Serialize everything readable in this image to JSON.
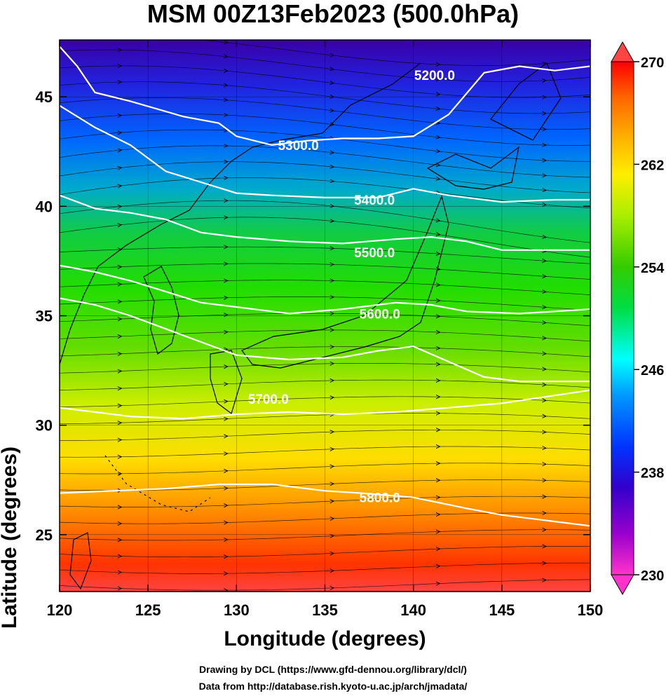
{
  "title": "MSM 00Z13Feb2023 (500.0hPa)",
  "xlabel": "Longitude (degrees)",
  "ylabel": "Latitude  (degrees)",
  "credits": {
    "line1": "Drawing by DCL (https://www.gfd-dennou.org/library/dcl/)",
    "line2": "Data from http://database.rish.kyoto-u.ac.jp/arch/jmadata/"
  },
  "chart_data": {
    "type": "heatmap",
    "x_range": [
      120,
      150
    ],
    "y_range": [
      22.4,
      47.6
    ],
    "x_ticks": [
      "120",
      "125",
      "130",
      "135",
      "140",
      "145",
      "150"
    ],
    "y_ticks": [
      "25",
      "30",
      "35",
      "40",
      "45"
    ],
    "colorbar": {
      "range": [
        230,
        270
      ],
      "ticks": [
        "230",
        "238",
        "246",
        "254",
        "262",
        "270"
      ],
      "colors": [
        "#ff33cc",
        "#9900cc",
        "#3300cc",
        "#0033ff",
        "#0099ff",
        "#00ffff",
        "#00dd44",
        "#33cc00",
        "#aaee00",
        "#ffee00",
        "#ffaa00",
        "#ff6600",
        "#ff0000"
      ]
    },
    "field_colors": {
      "north": "#4400aa",
      "mid_north": "#0055ff",
      "middle": "#22dd00",
      "mid_south": "#ddee00",
      "south": "#ff3300"
    },
    "contours": [
      {
        "label": "5200.0",
        "points": [
          [
            120,
            47.3
          ],
          [
            121,
            46.4
          ],
          [
            122,
            45.2
          ],
          [
            124,
            44.8
          ],
          [
            127,
            44.1
          ],
          [
            129,
            43.8
          ],
          [
            130,
            43.2
          ],
          [
            132,
            42.8
          ],
          [
            134,
            43.0
          ],
          [
            136,
            43.1
          ],
          [
            138,
            43.1
          ],
          [
            140,
            43.2
          ],
          [
            142,
            44.2
          ],
          [
            144,
            46.1
          ],
          [
            146,
            46.4
          ],
          [
            148,
            46.2
          ],
          [
            150,
            46.4
          ]
        ]
      },
      {
        "label": "5300.0",
        "points": [
          [
            120,
            44.6
          ],
          [
            122,
            43.6
          ],
          [
            124,
            42.8
          ],
          [
            126,
            41.6
          ],
          [
            128,
            41.1
          ],
          [
            130,
            40.6
          ],
          [
            132,
            40.5
          ],
          [
            135,
            40.4
          ],
          [
            138,
            40.4
          ],
          [
            140,
            40.8
          ],
          [
            142,
            40.5
          ],
          [
            145,
            40.2
          ],
          [
            148,
            40.3
          ],
          [
            150,
            40.3
          ]
        ]
      },
      {
        "label": "5400.0",
        "points": [
          [
            120,
            40.5
          ],
          [
            122,
            39.9
          ],
          [
            124,
            39.7
          ],
          [
            126,
            39.4
          ],
          [
            128,
            38.8
          ],
          [
            130,
            38.6
          ],
          [
            133,
            38.4
          ],
          [
            136,
            38.3
          ],
          [
            139,
            38.5
          ],
          [
            141,
            38.6
          ],
          [
            143,
            38.4
          ],
          [
            145,
            38.0
          ],
          [
            148,
            38.0
          ],
          [
            150,
            38.0
          ]
        ]
      },
      {
        "label": "5500.0",
        "points": [
          [
            120,
            37.3
          ],
          [
            122,
            37.0
          ],
          [
            124,
            36.6
          ],
          [
            126,
            36.1
          ],
          [
            128,
            35.6
          ],
          [
            130,
            35.4
          ],
          [
            133,
            35.1
          ],
          [
            136,
            35.3
          ],
          [
            139,
            35.6
          ],
          [
            141,
            35.5
          ],
          [
            143,
            35.2
          ],
          [
            146,
            35.1
          ],
          [
            150,
            35.3
          ]
        ]
      },
      {
        "label": "5600.0",
        "points": [
          [
            120,
            35.8
          ],
          [
            122,
            35.5
          ],
          [
            124,
            35.0
          ],
          [
            126,
            34.4
          ],
          [
            128,
            33.8
          ],
          [
            130,
            33.2
          ],
          [
            133,
            33.0
          ],
          [
            136,
            33.1
          ],
          [
            138,
            33.4
          ],
          [
            140,
            33.6
          ],
          [
            142,
            32.9
          ],
          [
            144,
            32.2
          ],
          [
            146,
            32.0
          ],
          [
            148,
            32.0
          ],
          [
            150,
            32.0
          ]
        ]
      },
      {
        "label": "5700.0",
        "points": [
          [
            120,
            30.8
          ],
          [
            122,
            30.6
          ],
          [
            124,
            30.4
          ],
          [
            127,
            30.3
          ],
          [
            130,
            30.5
          ],
          [
            133,
            30.6
          ],
          [
            136,
            30.5
          ],
          [
            139,
            30.6
          ],
          [
            142,
            30.8
          ],
          [
            145,
            31.0
          ],
          [
            150,
            31.6
          ]
        ]
      },
      {
        "label": "5800.0",
        "points": [
          [
            120,
            26.9
          ],
          [
            123,
            27.0
          ],
          [
            126,
            27.1
          ],
          [
            129,
            27.3
          ],
          [
            132,
            27.3
          ],
          [
            135,
            27.0
          ],
          [
            137,
            26.9
          ],
          [
            140,
            26.7
          ],
          [
            143,
            26.2
          ],
          [
            145,
            25.9
          ],
          [
            148,
            25.6
          ],
          [
            150,
            25.4
          ]
        ]
      }
    ],
    "contour_label_positions": [
      {
        "label": "5200.0",
        "x": 141.2,
        "y": 46.0
      },
      {
        "label": "5300.0",
        "x": 133.5,
        "y": 42.8
      },
      {
        "label": "5400.0",
        "x": 137.8,
        "y": 40.3
      },
      {
        "label": "5500.0",
        "x": 137.8,
        "y": 37.9
      },
      {
        "label": "5600.0",
        "x": 138.1,
        "y": 35.1
      },
      {
        "label": "5700.0",
        "x": 131.8,
        "y": 31.2
      },
      {
        "label": "5800.0",
        "x": 138.1,
        "y": 26.7
      }
    ]
  }
}
